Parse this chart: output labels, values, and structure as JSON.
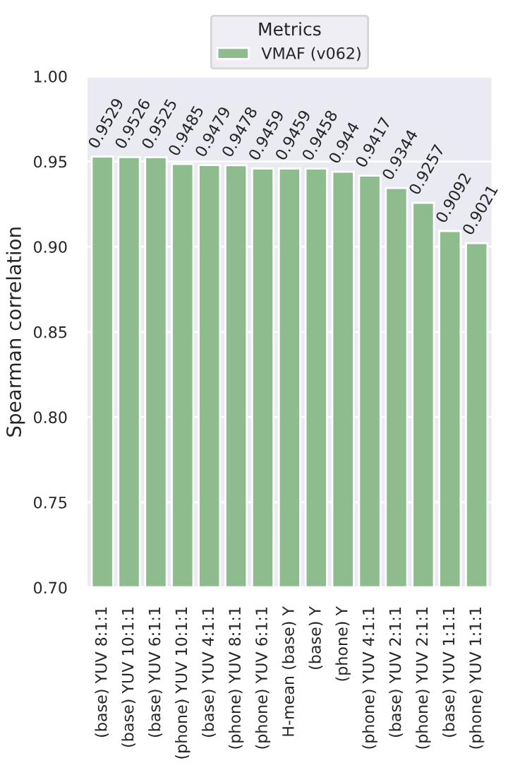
{
  "chart_data": {
    "type": "bar",
    "ylabel": "Spearman correlation",
    "legend_title": "Metrics",
    "categories": [
      "(base) YUV 8:1:1",
      "(base) YUV 10:1:1",
      "(base) YUV 6:1:1",
      "(phone) YUV 10:1:1",
      "(base) YUV 4:1:1",
      "(phone) YUV 8:1:1",
      "(phone) YUV 6:1:1",
      "H-mean (base) Y",
      "(base) Y",
      "(phone) Y",
      "(phone) YUV 4:1:1",
      "(base) YUV 2:1:1",
      "(phone) YUV 2:1:1",
      "(base) YUV 1:1:1",
      "(phone) YUV 1:1:1"
    ],
    "series": [
      {
        "name": "VMAF (v062)",
        "color": "#8fbc8f",
        "values": [
          0.9529,
          0.9526,
          0.9525,
          0.9485,
          0.9479,
          0.9478,
          0.9459,
          0.9459,
          0.9458,
          0.944,
          0.9417,
          0.9344,
          0.9257,
          0.9092,
          0.9021
        ]
      }
    ],
    "ylim": [
      0.7,
      1.0
    ],
    "yticks": [
      {
        "value": 0.7,
        "label": "0.70"
      },
      0.75,
      {
        "value": 0.8,
        "label": "0.80"
      },
      0.85,
      {
        "value": 0.9,
        "label": "0.90"
      },
      0.95,
      {
        "value": 1.0,
        "label": "1.00"
      }
    ],
    "data_labels": true,
    "grid": "y",
    "legend": "top"
  }
}
